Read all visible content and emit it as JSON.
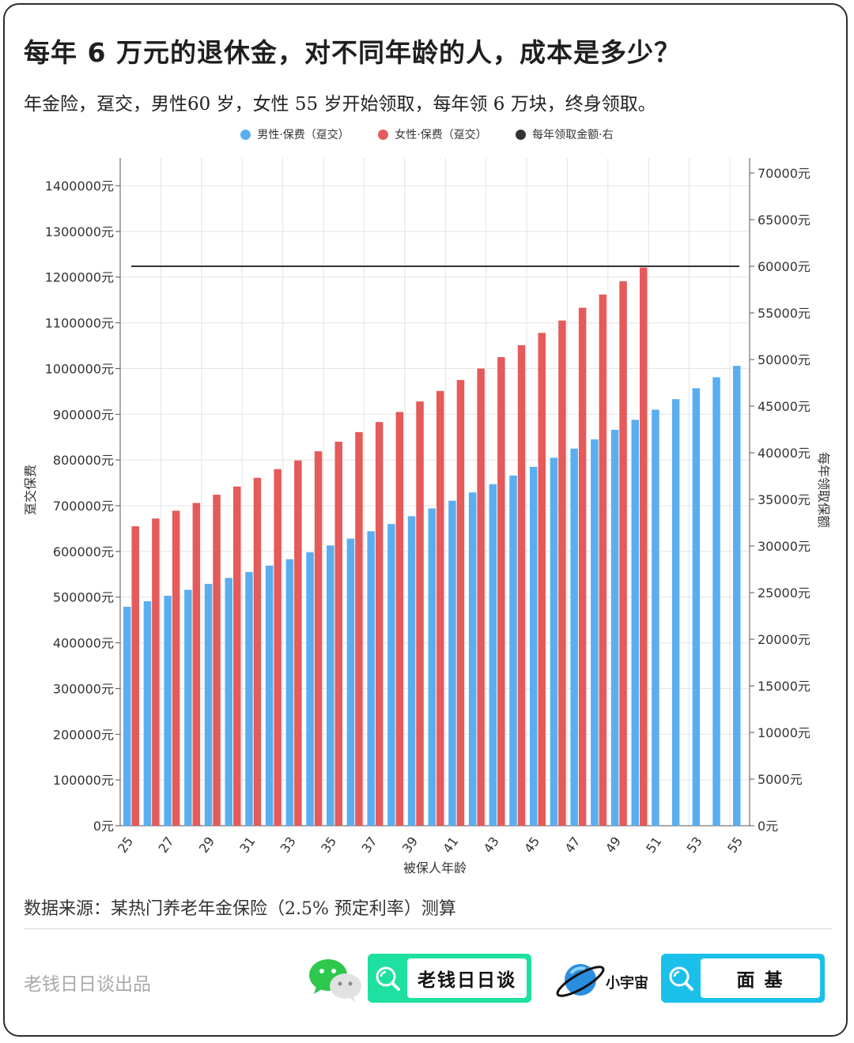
{
  "title": "每年 6 万元的退休金，对不同年龄的人，成本是多少？",
  "subtitle": "年金险，趸交，男性60 岁，女性 55 岁开始领取，每年领 6 万块，终身领取。",
  "source": "数据来源：某热门养老年金保险（2.5% 预定利率）测算",
  "credit": "老钱日日谈出品",
  "brand_search_1": "老钱日日谈",
  "brand_name_2": "小宇宙",
  "brand_search_2": "面 基",
  "icons": {
    "wechat": "wechat-icon",
    "search": "search-icon",
    "planet": "planet-icon"
  },
  "colors": {
    "male": "#5aaef0",
    "female": "#e55a5a",
    "line": "#333333"
  },
  "chart_data": {
    "type": "bar",
    "xlabel": "被保人年龄",
    "ylabel": "趸交保费",
    "ylabel_right": "每年领取保额",
    "legend_position": "top-center",
    "grid": true,
    "ylim": [
      0,
      1400000
    ],
    "ylim_right": [
      0,
      70000
    ],
    "yticks": [
      "0元",
      "100000元",
      "200000元",
      "300000元",
      "400000元",
      "500000元",
      "600000元",
      "700000元",
      "800000元",
      "900000元",
      "1000000元",
      "1100000元",
      "1200000元",
      "1300000元",
      "1400000元"
    ],
    "yticks_right": [
      "0元",
      "5000元",
      "10000元",
      "15000元",
      "20000元",
      "25000元",
      "30000元",
      "35000元",
      "40000元",
      "45000元",
      "50000元",
      "55000元",
      "60000元",
      "65000元",
      "70000元"
    ],
    "x": [
      25,
      26,
      27,
      28,
      29,
      30,
      31,
      32,
      33,
      34,
      35,
      36,
      37,
      38,
      39,
      40,
      41,
      42,
      43,
      44,
      45,
      46,
      47,
      48,
      49,
      50,
      51,
      52,
      53,
      54,
      55
    ],
    "xtick_labels": [
      "25",
      "27",
      "29",
      "31",
      "33",
      "35",
      "37",
      "39",
      "41",
      "43",
      "45",
      "47",
      "49",
      "51",
      "53",
      "55"
    ],
    "series": [
      {
        "name": "男性·保费（趸交）",
        "axis": "left",
        "type": "bar",
        "values": [
          479000,
          491000,
          503000,
          516000,
          529000,
          542000,
          555000,
          569000,
          583000,
          598000,
          613000,
          628000,
          644000,
          660000,
          677000,
          694000,
          711000,
          729000,
          747000,
          766000,
          785000,
          805000,
          825000,
          845000,
          866000,
          888000,
          910000,
          933000,
          957000,
          981000,
          1006000
        ]
      },
      {
        "name": "女性·保费（趸交）",
        "axis": "left",
        "type": "bar",
        "values": [
          655000,
          672000,
          689000,
          706000,
          724000,
          742000,
          761000,
          780000,
          799000,
          819000,
          840000,
          861000,
          883000,
          905000,
          928000,
          951000,
          975000,
          1000000,
          1025000,
          1051000,
          1078000,
          1105000,
          1133000,
          1162000,
          1191000,
          1221000,
          null,
          null,
          null,
          null,
          null
        ]
      },
      {
        "name": "每年领取金额·右",
        "axis": "right",
        "type": "line",
        "values": [
          60000,
          60000,
          60000,
          60000,
          60000,
          60000,
          60000,
          60000,
          60000,
          60000,
          60000,
          60000,
          60000,
          60000,
          60000,
          60000,
          60000,
          60000,
          60000,
          60000,
          60000,
          60000,
          60000,
          60000,
          60000,
          60000,
          60000,
          60000,
          60000,
          60000,
          60000
        ]
      }
    ]
  }
}
